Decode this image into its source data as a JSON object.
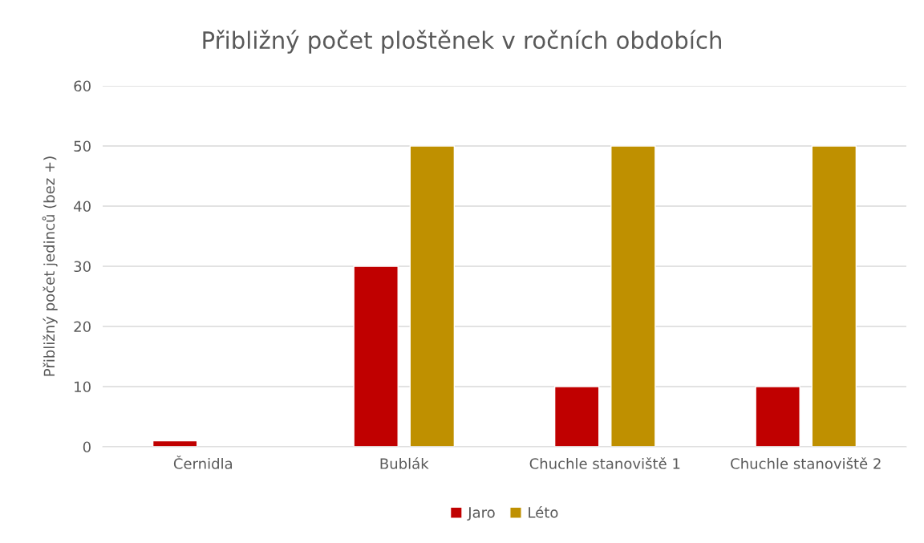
{
  "chart_data": {
    "type": "bar",
    "title": "Přibližný počet ploštěnek v ročních obdobích",
    "ylabel": "Přibližný počet jedinců (bez +)",
    "categories": [
      "Černidla",
      "Bublák",
      "Chuchle stanoviště 1",
      "Chuchle stanoviště 2"
    ],
    "series": [
      {
        "name": "Jaro",
        "color": "#c00000",
        "values": [
          1,
          30,
          10,
          10
        ]
      },
      {
        "name": "Léto",
        "color": "#bf9000",
        "values": [
          null,
          50,
          50,
          50
        ]
      }
    ],
    "ylim": [
      0,
      60
    ],
    "yticks": [
      0,
      10,
      20,
      30,
      40,
      50,
      60
    ],
    "grid": "y",
    "legend": "bottom"
  }
}
